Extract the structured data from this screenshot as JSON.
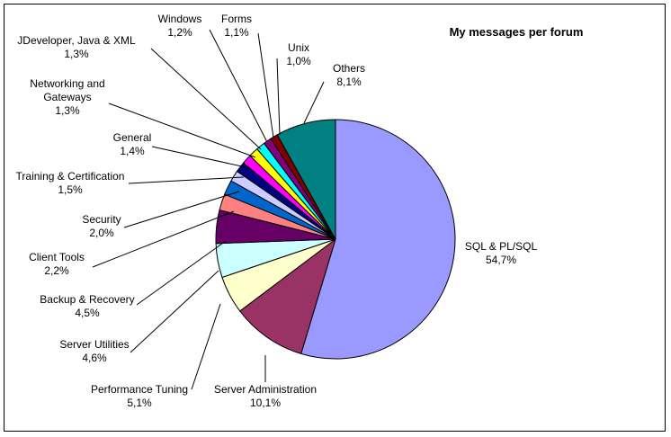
{
  "chart_data": {
    "type": "pie",
    "title": "My messages per forum",
    "start": "top, clockwise",
    "slices": [
      {
        "name": "SQL & PL/SQL",
        "label": "54,7%",
        "value": 54.7,
        "color": "#9999FF"
      },
      {
        "name": "Server Administration",
        "label": "10,1%",
        "value": 10.1,
        "color": "#993366"
      },
      {
        "name": "Performance Tuning",
        "label": "5,1%",
        "value": 5.1,
        "color": "#FFFFCC"
      },
      {
        "name": "Server Utilities",
        "label": "4,6%",
        "value": 4.6,
        "color": "#CCFFFF"
      },
      {
        "name": "Backup & Recovery",
        "label": "4,5%",
        "value": 4.5,
        "color": "#660066"
      },
      {
        "name": "Client Tools",
        "label": "2,2%",
        "value": 2.2,
        "color": "#FF8080"
      },
      {
        "name": "Security",
        "label": "2,0%",
        "value": 2.0,
        "color": "#0066CC"
      },
      {
        "name": "Training & Certification",
        "label": "1,5%",
        "value": 1.5,
        "color": "#CCCCFF"
      },
      {
        "name": "General",
        "label": "1,4%",
        "value": 1.4,
        "color": "#000080"
      },
      {
        "name": "Networking and Gateways",
        "label": "1,3%",
        "value": 1.3,
        "color": "#FF00FF"
      },
      {
        "name": "JDeveloper, Java & XML",
        "label": "1,3%",
        "value": 1.3,
        "color": "#FFFF00"
      },
      {
        "name": "Windows",
        "label": "1,2%",
        "value": 1.2,
        "color": "#00FFFF"
      },
      {
        "name": "Forms",
        "label": "1,1%",
        "value": 1.1,
        "color": "#800080"
      },
      {
        "name": "Unix",
        "label": "1,0%",
        "value": 1.0,
        "color": "#800000"
      },
      {
        "name": "Others",
        "label": "8,1%",
        "value": 8.1,
        "color": "#008080"
      }
    ]
  }
}
